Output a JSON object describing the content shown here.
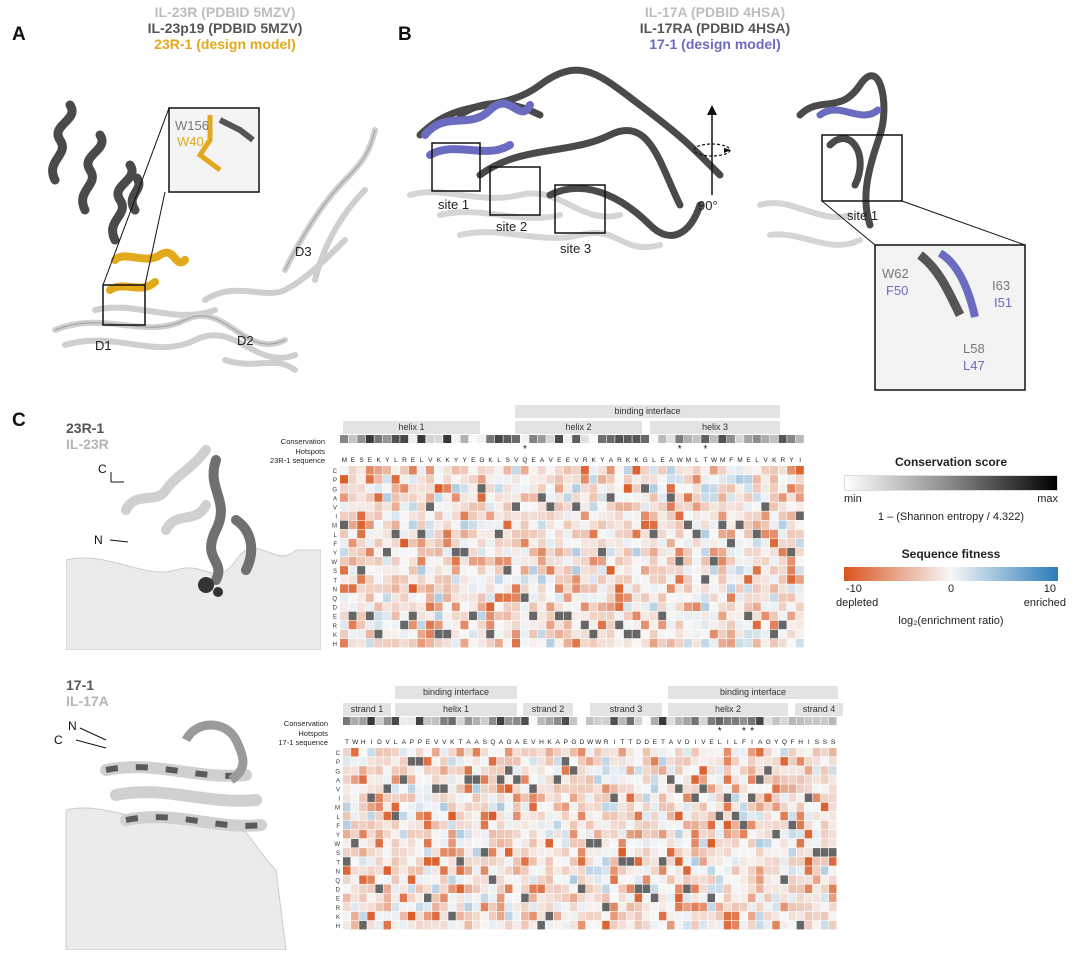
{
  "panelA": {
    "letter": "A",
    "legend": [
      "IL-23R (PDBID 5MZV)",
      "IL-23p19 (PDBID 5MZV)",
      "23R-1 (design model)"
    ],
    "legend_colors": [
      "#bdbdbd",
      "#555555",
      "#e2a91a"
    ],
    "inset_labels": [
      "W156",
      "W40"
    ],
    "domain_labels": [
      "D1",
      "D2",
      "D3"
    ]
  },
  "panelB": {
    "letter": "B",
    "legend": [
      "IL-17A (PDBID 4HSA)",
      "IL-17RA (PDBID 4HSA)",
      "17-1 (design model)"
    ],
    "legend_colors": [
      "#bdbdbd",
      "#555555",
      "#6b6bc0"
    ],
    "sites": [
      "site 1",
      "site 2",
      "site 3"
    ],
    "rotation": "90°",
    "right_site": "site 1",
    "inset_labels": {
      "W62": "W62",
      "F50": "F50",
      "I63": "I63",
      "I51": "I51",
      "L58": "L58",
      "L47": "L47"
    }
  },
  "panelC": {
    "letter": "C",
    "top": {
      "name1": "23R-1",
      "name2": "IL-23R",
      "terminus_c": "C",
      "terminus_n": "N",
      "header_interface": "binding interface",
      "headers": [
        "helix 1",
        "helix 2",
        "helix 3"
      ],
      "row_labels": [
        "Conservation",
        "Hotspots",
        "23R-1 sequence"
      ],
      "sequence": "MESEKYLRELVKKYYEGKLSVQEAVEEVRKYARKKGLEAWMLTWMFMELVKRYI",
      "hotspot_positions": [
        21,
        39,
        42
      ]
    },
    "bottom": {
      "name1": "17-1",
      "name2": "IL-17A",
      "terminus_n": "N",
      "terminus_c": "C",
      "header_interface": "binding interface",
      "header_interface2": "binding interface",
      "headers": [
        "strand 1",
        "helix 1",
        "strand 2",
        "strand 3",
        "helix 2",
        "strand 4"
      ],
      "row_labels": [
        "Conservation",
        "Hotspots",
        "17-1 sequence"
      ],
      "sequence": "TWHIDVLAPPEVVKTAASQAGAEVHKAPGDWWRITTDDETAVDIVELILFIAGYQFHISSS",
      "hotspot_positions": [
        46,
        49,
        50
      ]
    },
    "amino_acids": [
      "C",
      "P",
      "G",
      "A",
      "V",
      "I",
      "M",
      "L",
      "F",
      "Y",
      "W",
      "S",
      "T",
      "N",
      "Q",
      "D",
      "E",
      "R",
      "K",
      "H"
    ],
    "legend": {
      "conservation_title": "Conservation score",
      "min": "min",
      "max": "max",
      "conservation_formula": "1 – (Shannon entropy / 4.322)",
      "fitness_title": "Sequence fitness",
      "tick_low": "-10",
      "tick_mid": "0",
      "tick_high": "10",
      "depleted": "depleted",
      "enriched": "enriched",
      "axis": "log₂(enrichment ratio)"
    },
    "colors": {
      "depleted": "#d9541e",
      "neutral": "#f7f7f7",
      "enriched": "#2a7bb8"
    }
  }
}
